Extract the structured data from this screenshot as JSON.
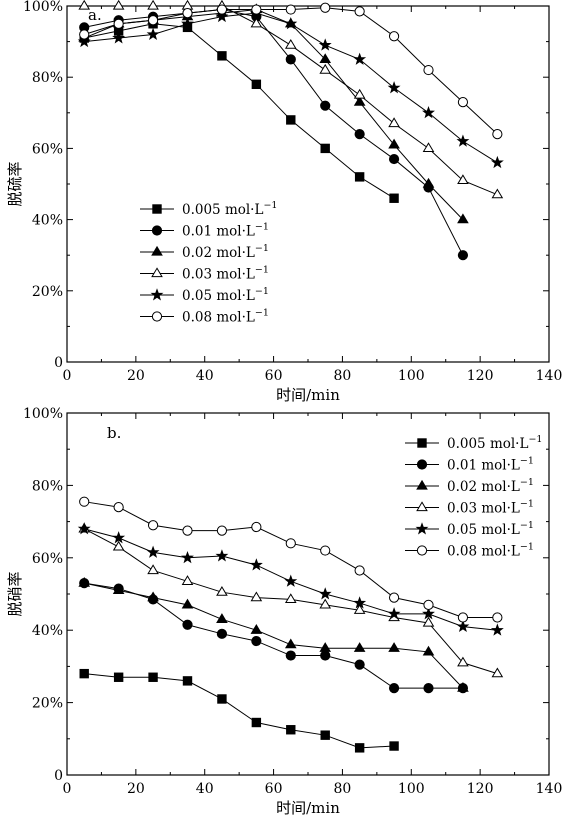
{
  "chart_data": [
    {
      "type": "line",
      "panel_label": "a.",
      "xlabel": "时间/min",
      "ylabel": "脱硫率",
      "xlim": [
        0,
        140
      ],
      "ylim": [
        0,
        100
      ],
      "xticks": [
        "0",
        "20",
        "40",
        "60",
        "80",
        "100",
        "120",
        "140"
      ],
      "yticks": [
        "0",
        "20%",
        "40%",
        "60%",
        "80%",
        "100%"
      ],
      "legend_position": "lower-left",
      "grid": false,
      "series": [
        {
          "name": "0.005 mol·L",
          "sup": "−1",
          "marker": "square-filled",
          "x": [
            5,
            15,
            25,
            35,
            45,
            55,
            65,
            75,
            85,
            95
          ],
          "y": [
            91,
            93,
            95,
            94,
            86,
            78,
            68,
            60,
            52,
            46
          ]
        },
        {
          "name": "0.01 mol·L",
          "sup": "−1",
          "marker": "circle-filled",
          "x": [
            5,
            15,
            25,
            35,
            45,
            55,
            65,
            75,
            85,
            95,
            105,
            115
          ],
          "y": [
            94,
            96,
            97,
            98,
            99,
            97,
            85,
            72,
            64,
            57,
            49,
            30
          ]
        },
        {
          "name": "0.02 mol·L",
          "sup": "−1",
          "marker": "triangle-filled",
          "x": [
            5,
            15,
            25,
            35,
            45,
            55,
            65,
            75,
            85,
            95,
            105,
            115
          ],
          "y": [
            91,
            95,
            96,
            97,
            98,
            99,
            95,
            85,
            73,
            61,
            50,
            40
          ]
        },
        {
          "name": "0.03 mol·L",
          "sup": "−1",
          "marker": "triangle-open",
          "x": [
            5,
            15,
            25,
            35,
            45,
            55,
            65,
            75,
            85,
            95,
            105,
            115,
            125
          ],
          "y": [
            100,
            100,
            100,
            100,
            100,
            95,
            89,
            82,
            75,
            67,
            60,
            51,
            47
          ]
        },
        {
          "name": "0.05 mol·L",
          "sup": "−1",
          "marker": "star-filled",
          "x": [
            5,
            15,
            25,
            35,
            45,
            55,
            65,
            75,
            85,
            95,
            105,
            115,
            125
          ],
          "y": [
            90,
            91,
            92,
            95,
            97,
            98,
            95,
            89,
            85,
            77,
            70,
            62,
            56
          ]
        },
        {
          "name": "0.08 mol·L",
          "sup": "−1",
          "marker": "circle-open",
          "x": [
            5,
            15,
            25,
            35,
            45,
            55,
            65,
            75,
            85,
            95,
            105,
            115,
            125
          ],
          "y": [
            92,
            95,
            96,
            98,
            99,
            99,
            99,
            99.5,
            98.5,
            91.5,
            82,
            73,
            64
          ]
        }
      ]
    },
    {
      "type": "line",
      "panel_label": "b.",
      "xlabel": "时间/min",
      "ylabel": "脱硝率",
      "xlim": [
        0,
        140
      ],
      "ylim": [
        0,
        100
      ],
      "xticks": [
        "0",
        "20",
        "40",
        "60",
        "80",
        "100",
        "120",
        "140"
      ],
      "yticks": [
        "0",
        "20%",
        "40%",
        "60%",
        "80%",
        "100%"
      ],
      "legend_position": "top-right",
      "grid": false,
      "series": [
        {
          "name": "0.005 mol·L",
          "sup": "−1",
          "marker": "square-filled",
          "x": [
            5,
            15,
            25,
            35,
            45,
            55,
            65,
            75,
            85,
            95
          ],
          "y": [
            28,
            27,
            27,
            26,
            21,
            14.5,
            12.5,
            11,
            7.5,
            8
          ]
        },
        {
          "name": "0.01 mol·L",
          "sup": "−1",
          "marker": "circle-filled",
          "x": [
            5,
            15,
            25,
            35,
            45,
            55,
            65,
            75,
            85,
            95,
            105,
            115
          ],
          "y": [
            53,
            51.5,
            48.5,
            41.5,
            39,
            37,
            33,
            33,
            30.5,
            24,
            24,
            24
          ]
        },
        {
          "name": "0.02 mol·L",
          "sup": "−1",
          "marker": "triangle-filled",
          "x": [
            5,
            15,
            25,
            35,
            45,
            55,
            65,
            75,
            85,
            95,
            105,
            115
          ],
          "y": [
            53,
            51,
            49,
            47,
            43,
            40,
            36,
            35,
            35,
            35,
            34,
            24
          ]
        },
        {
          "name": "0.03 mol·L",
          "sup": "−1",
          "marker": "triangle-open",
          "x": [
            5,
            15,
            25,
            35,
            45,
            55,
            65,
            75,
            85,
            95,
            105,
            115,
            125
          ],
          "y": [
            68,
            63,
            56.5,
            53.5,
            50.5,
            49,
            48.5,
            47,
            45.5,
            43.5,
            42,
            31,
            28
          ]
        },
        {
          "name": "0.05 mol·L",
          "sup": "−1",
          "marker": "star-filled",
          "x": [
            5,
            15,
            25,
            35,
            45,
            55,
            65,
            75,
            85,
            95,
            105,
            115,
            125
          ],
          "y": [
            68,
            65.5,
            61.5,
            60,
            60.5,
            58,
            53.5,
            50,
            47.5,
            44.5,
            44.5,
            41,
            40
          ]
        },
        {
          "name": "0.08 mol·L",
          "sup": "−1",
          "marker": "circle-open",
          "x": [
            5,
            15,
            25,
            35,
            45,
            55,
            65,
            75,
            85,
            95,
            105,
            115,
            125
          ],
          "y": [
            75.5,
            74,
            69,
            67.5,
            67.5,
            68.5,
            64,
            62,
            56.5,
            49,
            47,
            43.5,
            43.5
          ]
        }
      ]
    }
  ]
}
